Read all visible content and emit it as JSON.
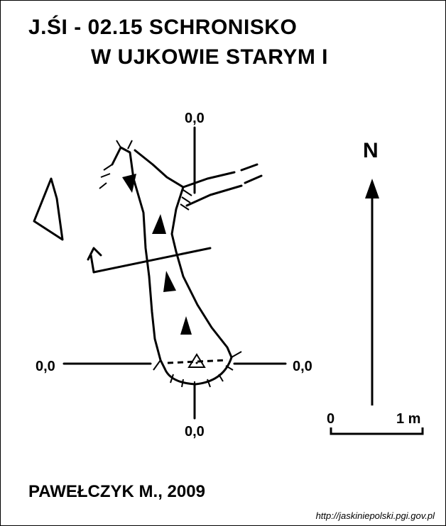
{
  "title": {
    "line1": "J.ŚI - 02.15  SCHRONISKO",
    "line2": "W UJKOWIE STARYM I"
  },
  "grid_labels": {
    "top": "0,0",
    "bottom": "0,0",
    "left": "0,0",
    "right": "0,0"
  },
  "north_label": "N",
  "scale": {
    "start_label": "0",
    "end_label": "1 m"
  },
  "author": "PAWEŁCZYK M., 2009",
  "source": "http://jaskiniepolski.pgi.gov.pl",
  "colors": {
    "ink": "#000000",
    "paper": "#ffffff"
  }
}
